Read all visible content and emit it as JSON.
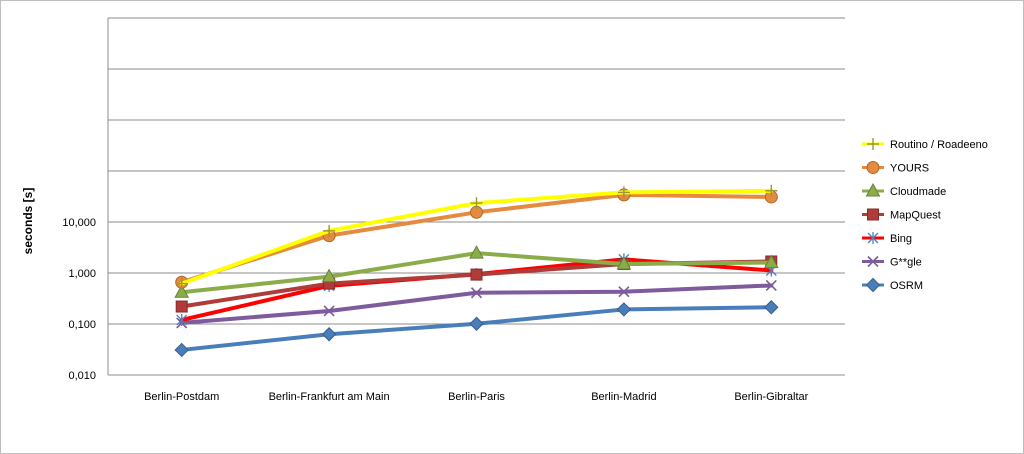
{
  "chart_data": {
    "type": "line",
    "ylabel": "seconds [s]",
    "xlabel": "",
    "yscale": "log",
    "ylim": [
      0.01,
      100000
    ],
    "ytick_labels": [
      "0,010",
      "0,100",
      "1,000",
      "10,000"
    ],
    "ytick_values": [
      0.01,
      0.1,
      1,
      10
    ],
    "categories": [
      "Berlin-Postdam",
      "Berlin-Frankfurt am Main",
      "Berlin-Paris",
      "Berlin-Madrid",
      "Berlin-Gibraltar"
    ],
    "grid": "horizontal",
    "legend_position": "right",
    "series": [
      {
        "name": "Routino / Roadeeno",
        "color": "#ffff00",
        "marker": "plus",
        "values": [
          0.62,
          6.7,
          23.5,
          38,
          41
        ]
      },
      {
        "name": "YOURS",
        "color": "#e58a3e",
        "marker": "circle",
        "values": [
          0.66,
          5.4,
          15.5,
          34,
          31
        ]
      },
      {
        "name": "Cloudmade",
        "color": "#8aad4a",
        "marker": "triangle",
        "values": [
          0.42,
          0.85,
          2.45,
          1.5,
          1.6
        ]
      },
      {
        "name": "MapQuest",
        "color": "#b03b38",
        "marker": "square",
        "values": [
          0.22,
          0.62,
          0.93,
          1.5,
          1.68
        ]
      },
      {
        "name": "Bing",
        "color": "#ff0000",
        "marker": "asterisk",
        "values": [
          0.12,
          0.56,
          0.95,
          1.85,
          1.12
        ]
      },
      {
        "name": "G**gle",
        "color": "#7d5b9c",
        "marker": "x",
        "values": [
          0.105,
          0.18,
          0.41,
          0.43,
          0.57
        ]
      },
      {
        "name": "OSRM",
        "color": "#4a7ebb",
        "marker": "diamond",
        "values": [
          0.031,
          0.063,
          0.101,
          0.193,
          0.213
        ]
      }
    ]
  }
}
